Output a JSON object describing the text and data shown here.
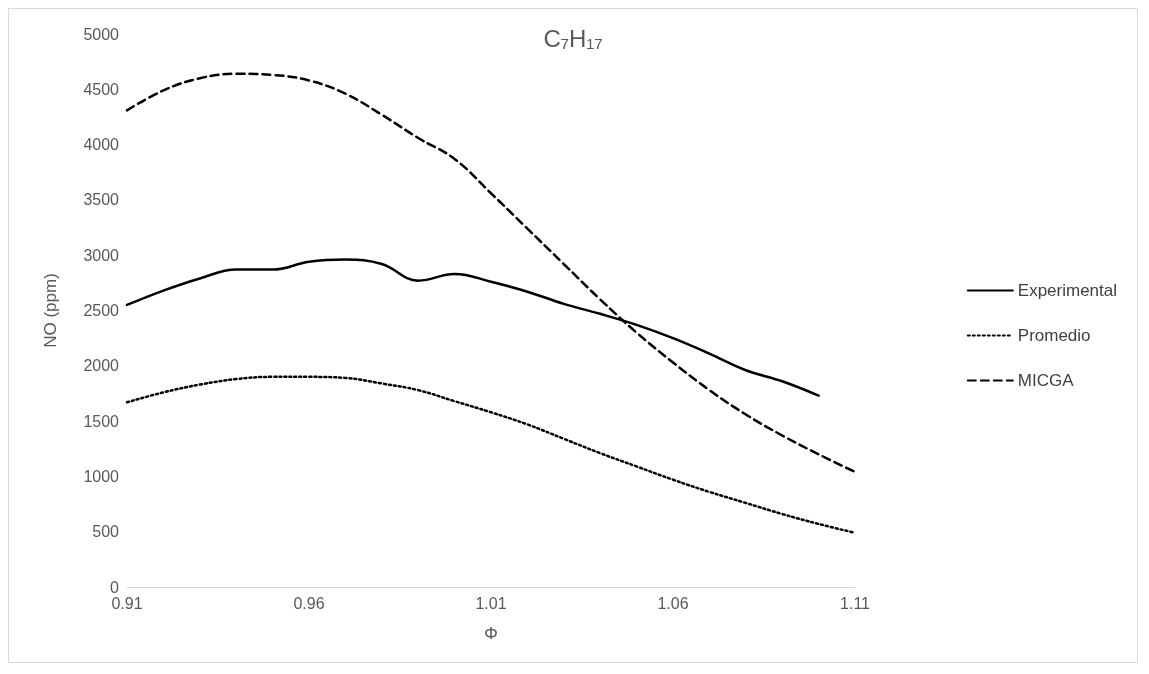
{
  "chart_data": {
    "type": "line",
    "title": "C₇H₁₇",
    "xlabel": "Φ",
    "ylabel": "NO (ppm)",
    "xlim": [
      0.91,
      1.11
    ],
    "xticks": [
      0.91,
      0.96,
      1.01,
      1.06,
      1.11
    ],
    "ylim": [
      0,
      5000
    ],
    "yticks": [
      0,
      500,
      1000,
      1500,
      2000,
      2500,
      3000,
      3500,
      4000,
      4500,
      5000
    ],
    "grid": false,
    "legend": "right",
    "marker": "none",
    "series": [
      {
        "name": "Experimental",
        "color": "#000000",
        "line_style": "solid",
        "x": [
          0.91,
          0.92,
          0.93,
          0.94,
          0.95,
          0.96,
          0.97,
          0.98,
          0.99,
          1.0,
          1.01,
          1.02,
          1.03,
          1.04,
          1.05,
          1.06,
          1.07,
          1.08,
          1.09,
          1.1
        ],
        "values": [
          2550,
          2680,
          2790,
          2870,
          2870,
          2940,
          2960,
          2920,
          2770,
          2830,
          2760,
          2670,
          2560,
          2470,
          2370,
          2250,
          2110,
          1960,
          1860,
          1730
        ]
      },
      {
        "name": "Promedio",
        "color": "#000000",
        "line_style": "dotted",
        "x": [
          0.91,
          0.92,
          0.93,
          0.94,
          0.95,
          0.96,
          0.97,
          0.98,
          0.99,
          1.0,
          1.01,
          1.02,
          1.03,
          1.04,
          1.05,
          1.06,
          1.07,
          1.08,
          1.09,
          1.1,
          1.11
        ],
        "values": [
          1670,
          1760,
          1830,
          1880,
          1900,
          1900,
          1890,
          1840,
          1780,
          1680,
          1580,
          1470,
          1340,
          1210,
          1090,
          970,
          860,
          760,
          660,
          570,
          490
        ]
      },
      {
        "name": "MICGA",
        "color": "#000000",
        "line_style": "dashed",
        "x": [
          0.91,
          0.92,
          0.93,
          0.94,
          0.95,
          0.96,
          0.97,
          0.98,
          0.99,
          1.0,
          1.01,
          1.02,
          1.03,
          1.04,
          1.05,
          1.06,
          1.07,
          1.08,
          1.09,
          1.1,
          1.11
        ],
        "values": [
          4310,
          4490,
          4600,
          4640,
          4630,
          4580,
          4460,
          4270,
          4060,
          3870,
          3560,
          3240,
          2920,
          2600,
          2300,
          2030,
          1780,
          1560,
          1370,
          1200,
          1040
        ]
      }
    ]
  }
}
